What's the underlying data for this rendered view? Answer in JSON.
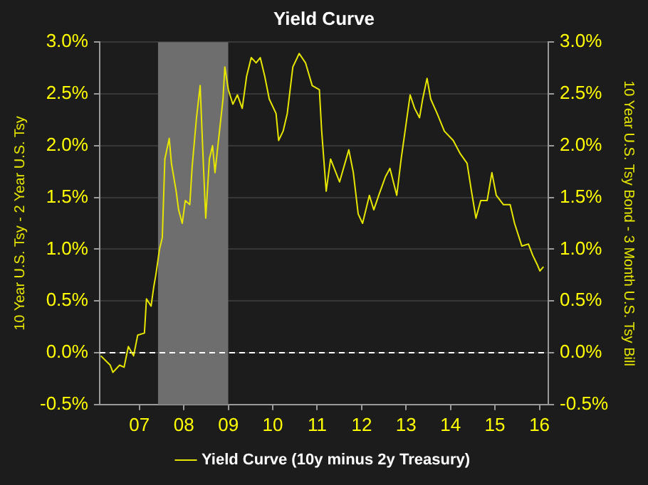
{
  "chart_data": {
    "type": "line",
    "title": "Yield Curve",
    "ylabel": "10 Year U.S. Tsy - 2 Year U.S. Tsy",
    "y2label": "10 Year U.S. Tsy Bond - 3 Month U.S. Tsy Bill",
    "x": [
      "2006-08-18",
      "2006-11-03",
      "2006-11-25",
      "2007-01-19",
      "2007-02-25",
      "2007-04-01",
      "2007-05-14",
      "2007-06-17",
      "2007-08-11",
      "2007-08-28",
      "2007-10-05",
      "2007-10-26",
      "2007-11-14",
      "2007-12-13",
      "2008-01-05",
      "2008-01-26",
      "2008-03-02",
      "2008-03-20",
      "2008-04-28",
      "2008-05-18",
      "2008-06-17",
      "2008-07-12",
      "2008-08-18",
      "2008-09-06",
      "2008-10-12",
      "2008-11-11",
      "2008-12-09",
      "2008-12-27",
      "2009-01-26",
      "2009-02-21",
      "2009-03-13",
      "2009-04-19",
      "2009-05-18",
      "2009-06-02",
      "2009-07-01",
      "2009-08-07",
      "2009-09-13",
      "2009-10-23",
      "2009-11-28",
      "2010-01-05",
      "2010-02-14",
      "2010-03-20",
      "2010-04-26",
      "2010-06-02",
      "2010-07-28",
      "2010-08-18",
      "2010-09-24",
      "2010-10-28",
      "2010-12-13",
      "2011-02-03",
      "2011-03-27",
      "2011-05-21",
      "2011-07-19",
      "2011-08-07",
      "2011-09-13",
      "2011-10-19",
      "2012-01-01",
      "2012-03-17",
      "2012-04-23",
      "2012-06-02",
      "2012-07-08",
      "2012-09-02",
      "2012-10-08",
      "2012-11-18",
      "2013-01-12",
      "2013-02-18",
      "2013-04-15",
      "2013-05-21",
      "2013-06-27",
      "2013-08-03",
      "2013-09-09",
      "2013-10-19",
      "2013-11-14",
      "2013-12-20",
      "2014-01-19",
      "2014-03-13",
      "2014-05-11",
      "2014-07-23",
      "2014-09-20",
      "2014-11-14",
      "2014-12-20",
      "2015-01-26",
      "2015-03-06",
      "2015-04-28",
      "2015-06-06",
      "2015-07-12",
      "2015-09-09",
      "2015-11-03",
      "2015-12-09",
      "2016-02-07",
      "2016-04-01",
      "2016-05-07",
      "2016-06-13",
      "2016-07-04",
      "2016-08-03"
    ],
    "series": [
      {
        "name": "Yield Curve (10y minus 2y Treasury)",
        "color": "#e6e600",
        "values": [
          -0.03,
          -0.12,
          -0.19,
          -0.12,
          -0.14,
          0.06,
          -0.03,
          0.17,
          0.19,
          0.52,
          0.45,
          0.63,
          0.76,
          1.0,
          1.11,
          1.87,
          2.07,
          1.83,
          1.56,
          1.38,
          1.25,
          1.47,
          1.43,
          1.79,
          2.27,
          2.58,
          1.78,
          1.3,
          1.87,
          2.0,
          1.74,
          2.14,
          2.45,
          2.76,
          2.54,
          2.4,
          2.49,
          2.36,
          2.67,
          2.85,
          2.8,
          2.85,
          2.67,
          2.45,
          2.31,
          2.05,
          2.14,
          2.31,
          2.76,
          2.89,
          2.8,
          2.58,
          2.54,
          2.14,
          1.56,
          1.87,
          1.65,
          1.96,
          1.74,
          1.34,
          1.25,
          1.52,
          1.38,
          1.52,
          1.7,
          1.78,
          1.52,
          1.87,
          2.18,
          2.49,
          2.36,
          2.27,
          2.45,
          2.65,
          2.45,
          2.31,
          2.14,
          2.05,
          1.92,
          1.83,
          1.56,
          1.3,
          1.47,
          1.47,
          1.74,
          1.52,
          1.43,
          1.43,
          1.25,
          1.03,
          1.05,
          0.94,
          0.85,
          0.79,
          0.83
        ]
      }
    ],
    "xlim": [
      "2006-08-08",
      "2016-09-12"
    ],
    "xticks": [
      {
        "value": "2007-07-01",
        "label": "07"
      },
      {
        "value": "2008-07-01",
        "label": "08"
      },
      {
        "value": "2009-07-01",
        "label": "09"
      },
      {
        "value": "2010-07-01",
        "label": "10"
      },
      {
        "value": "2011-07-01",
        "label": "11"
      },
      {
        "value": "2012-07-01",
        "label": "12"
      },
      {
        "value": "2013-07-01",
        "label": "13"
      },
      {
        "value": "2014-07-01",
        "label": "14"
      },
      {
        "value": "2015-07-01",
        "label": "15"
      },
      {
        "value": "2016-07-01",
        "label": "16"
      }
    ],
    "ylim": [
      -0.5,
      3
    ],
    "yticks": [
      {
        "value": -0.5,
        "label": "-0.5%"
      },
      {
        "value": 0,
        "label": "0.0%"
      },
      {
        "value": 0.5,
        "label": "0.5%"
      },
      {
        "value": 1,
        "label": "1.0%"
      },
      {
        "value": 1.5,
        "label": "1.5%"
      },
      {
        "value": 2,
        "label": "2.0%"
      },
      {
        "value": 2.5,
        "label": "2.5%"
      },
      {
        "value": 3,
        "label": "3.0%"
      }
    ],
    "y2lim": [
      -0.5,
      3
    ],
    "y2ticks": [
      {
        "value": -0.5,
        "label": "-0.5%"
      },
      {
        "value": 0,
        "label": "0.0%"
      },
      {
        "value": 0.5,
        "label": "0.5%"
      },
      {
        "value": 1,
        "label": "1.0%"
      },
      {
        "value": 1.5,
        "label": "1.5%"
      },
      {
        "value": 2,
        "label": "2.0%"
      },
      {
        "value": 2.5,
        "label": "2.5%"
      },
      {
        "value": 3,
        "label": "3.0%"
      }
    ],
    "bands": [
      {
        "axis": "x",
        "from": "2007-12-01",
        "to": "2009-06-30",
        "color": "#6e6e6e"
      }
    ],
    "ref_lines": [
      {
        "axis": "y",
        "value": 0,
        "color": "#ffffff",
        "line_style": "dashed"
      }
    ],
    "grid": "y",
    "legend": "bottom",
    "marker": "none",
    "line_style": "solid"
  }
}
